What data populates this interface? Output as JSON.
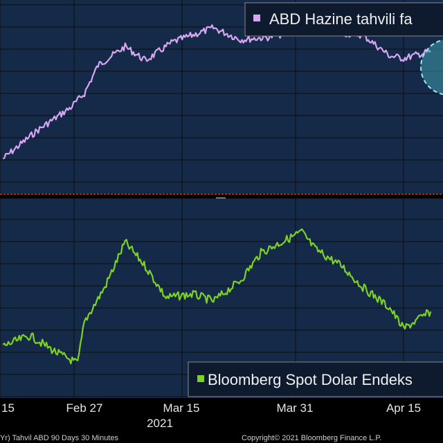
{
  "chart_data": [
    {
      "type": "line",
      "panel": "top",
      "legend": "ABD Hazine tahvili faizi",
      "legend_visible_text": "ABD Hazine tahvili fa",
      "legend_placement": "top-right",
      "series_color": "#d8a6f2",
      "grid": true,
      "highlight_circle": true,
      "x": [
        "Feb 15",
        "Feb 20",
        "Feb 25",
        "Feb 27",
        "Mar 1",
        "Mar 5",
        "Mar 8",
        "Mar 12",
        "Mar 15",
        "Mar 18",
        "Mar 22",
        "Mar 26",
        "Mar 31",
        "Apr 5",
        "Apr 9",
        "Apr 13",
        "Apr 15",
        "Apr 19"
      ],
      "y": [
        1.2,
        1.32,
        1.42,
        1.48,
        1.6,
        1.68,
        1.62,
        1.7,
        1.73,
        1.76,
        1.71,
        1.72,
        1.75,
        1.74,
        1.73,
        1.64,
        1.63,
        1.66
      ]
    },
    {
      "type": "line",
      "panel": "bottom",
      "legend": "Bloomberg Spot Dolar Endeksi",
      "legend_visible_text": "Bloomberg Spot Dolar Endeks",
      "legend_placement": "bottom-right",
      "series_color": "#7ed321",
      "grid": true,
      "x": [
        "Feb 15",
        "Feb 19",
        "Feb 23",
        "Feb 26",
        "Feb 27",
        "Mar 2",
        "Mar 5",
        "Mar 8",
        "Mar 11",
        "Mar 15",
        "Mar 18",
        "Mar 22",
        "Mar 25",
        "Mar 29",
        "Mar 31",
        "Apr 2",
        "Apr 6",
        "Apr 9",
        "Apr 13",
        "Apr 15",
        "Apr 19"
      ],
      "y": [
        1135,
        1138,
        1133,
        1130,
        1142,
        1152,
        1165,
        1158,
        1149,
        1150,
        1148,
        1154,
        1162,
        1166,
        1168,
        1163,
        1158,
        1152,
        1146,
        1140,
        1145
      ]
    }
  ],
  "x_axis": {
    "ticks": [
      "15",
      "Feb 27",
      "Mar 15",
      "Mar 31",
      "Apr 15"
    ],
    "year_label": "2021"
  },
  "footer": {
    "left": "Yr) Tahvil ABD 90 Days 30 Minutes",
    "right": "Copyright© 2021 Bloomberg Finance L.P."
  },
  "colors": {
    "panel_bg": "#152a48",
    "grid": "#0d0d0d",
    "divider": "#c8602a",
    "axis_text": "#e6e6e6",
    "footer_text": "#cfcfcf",
    "highlight_fill": "#4ab6c8",
    "highlight_stroke": "#9ee6f2"
  }
}
